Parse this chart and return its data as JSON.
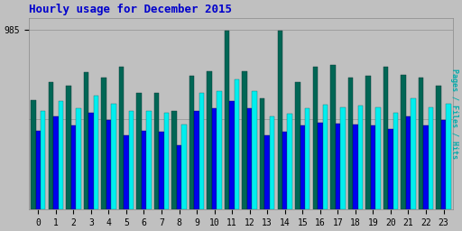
{
  "title": "Hourly usage for December 2015",
  "ylabel": "Pages / Files / Hits",
  "hours": [
    0,
    1,
    2,
    3,
    4,
    5,
    6,
    7,
    8,
    9,
    10,
    11,
    12,
    13,
    14,
    15,
    16,
    17,
    18,
    19,
    20,
    21,
    22,
    23
  ],
  "hits": [
    600,
    700,
    680,
    750,
    720,
    780,
    640,
    640,
    540,
    730,
    755,
    980,
    755,
    610,
    980,
    700,
    780,
    790,
    720,
    730,
    780,
    735,
    720,
    680
  ],
  "pages": [
    430,
    510,
    460,
    530,
    490,
    405,
    430,
    425,
    350,
    540,
    555,
    595,
    555,
    405,
    425,
    460,
    475,
    470,
    465,
    460,
    440,
    510,
    460,
    490
  ],
  "files": [
    540,
    595,
    555,
    625,
    580,
    540,
    540,
    530,
    465,
    640,
    650,
    710,
    650,
    510,
    525,
    555,
    575,
    560,
    567,
    560,
    530,
    608,
    558,
    580
  ],
  "hits_color": "#006655",
  "pages_color": "#0000EE",
  "files_color": "#00EEEE",
  "bg_color": "#C0C0C0",
  "plot_bg_color": "#C0C0C0",
  "title_color": "#0000CC",
  "ylabel_color": "#00AAAA",
  "ytick_val": 985,
  "ytick_label": "985",
  "bar_width": 0.28,
  "title_fontsize": 9,
  "tick_fontsize": 7,
  "ymax": 1050,
  "xlim_left": -0.55,
  "xlim_right": 23.55
}
